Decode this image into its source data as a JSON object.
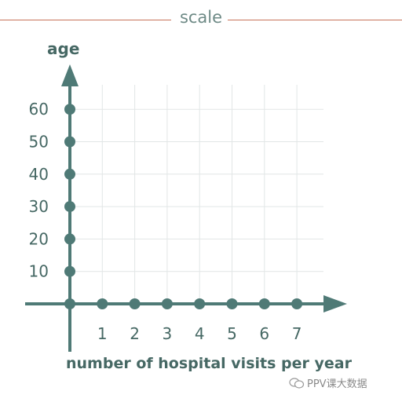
{
  "header": {
    "title": "scale"
  },
  "chart_data": {
    "type": "scatter",
    "xlabel": "number of hospital visits per year",
    "ylabel": "age",
    "x_ticks": [
      1,
      2,
      3,
      4,
      5,
      6,
      7
    ],
    "y_ticks": [
      10,
      20,
      30,
      40,
      50,
      60
    ],
    "xlim": [
      0,
      7
    ],
    "ylim": [
      0,
      60
    ],
    "grid": true,
    "colors": {
      "axis": "#4f7a76",
      "grid": "#e2e6e6",
      "header_rule": "#c8735a",
      "text": "#466864"
    }
  },
  "watermark": {
    "text": "PPV课大数据",
    "icon": "chat-bubbles-icon"
  }
}
